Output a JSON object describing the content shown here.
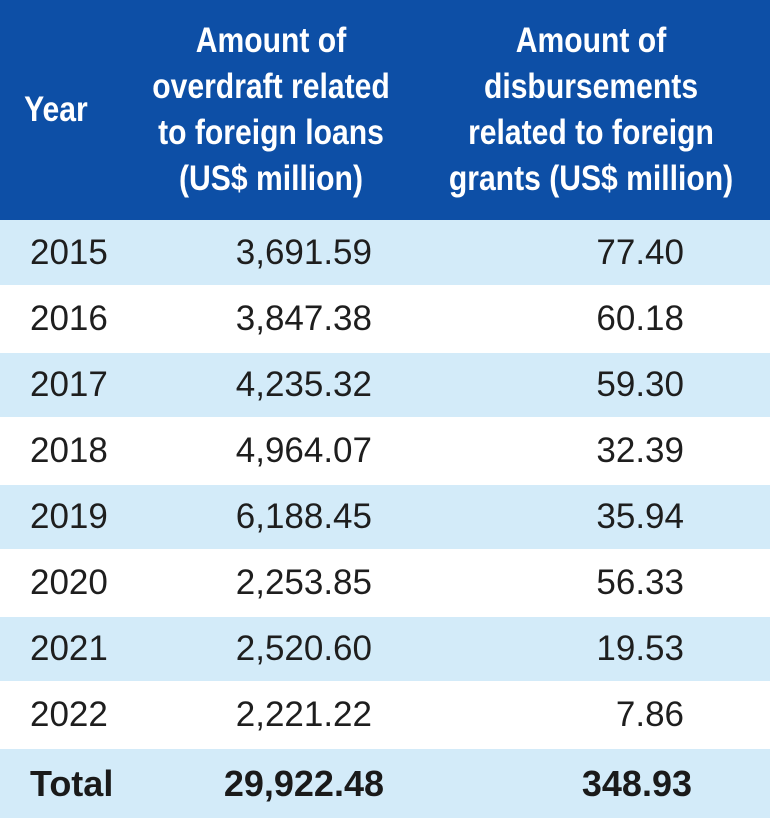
{
  "chart_data": {
    "type": "table",
    "columns": [
      "Year",
      "Amount of overdraft related to foreign loans (US$ million)",
      "Amount of disbursements related to foreign grants (US$ million)"
    ],
    "header_lines": {
      "year": [
        "Year"
      ],
      "overdraft": [
        "Amount of",
        "overdraft related",
        "to foreign loans",
        "(US$ million)"
      ],
      "grants": [
        "Amount of",
        "disbursements",
        "related to foreign",
        "grants (US$ million)"
      ]
    },
    "rows": [
      {
        "year": "2015",
        "overdraft": "3,691.59",
        "grants": "77.40"
      },
      {
        "year": "2016",
        "overdraft": "3,847.38",
        "grants": "60.18"
      },
      {
        "year": "2017",
        "overdraft": "4,235.32",
        "grants": "59.30"
      },
      {
        "year": "2018",
        "overdraft": "4,964.07",
        "grants": "32.39"
      },
      {
        "year": "2019",
        "overdraft": "6,188.45",
        "grants": "35.94"
      },
      {
        "year": "2020",
        "overdraft": "2,253.85",
        "grants": "56.33"
      },
      {
        "year": "2021",
        "overdraft": "2,520.60",
        "grants": "19.53"
      },
      {
        "year": "2022",
        "overdraft": "2,221.22",
        "grants": "7.86"
      }
    ],
    "total": {
      "label": "Total",
      "overdraft": "29,922.48",
      "grants": "348.93"
    }
  },
  "colors": {
    "header_bg": "#0d4fa6",
    "header_text": "#ffffff",
    "row_shade": "#d3ebf9",
    "row_plain": "#ffffff",
    "body_text": "#1e1e1e"
  }
}
